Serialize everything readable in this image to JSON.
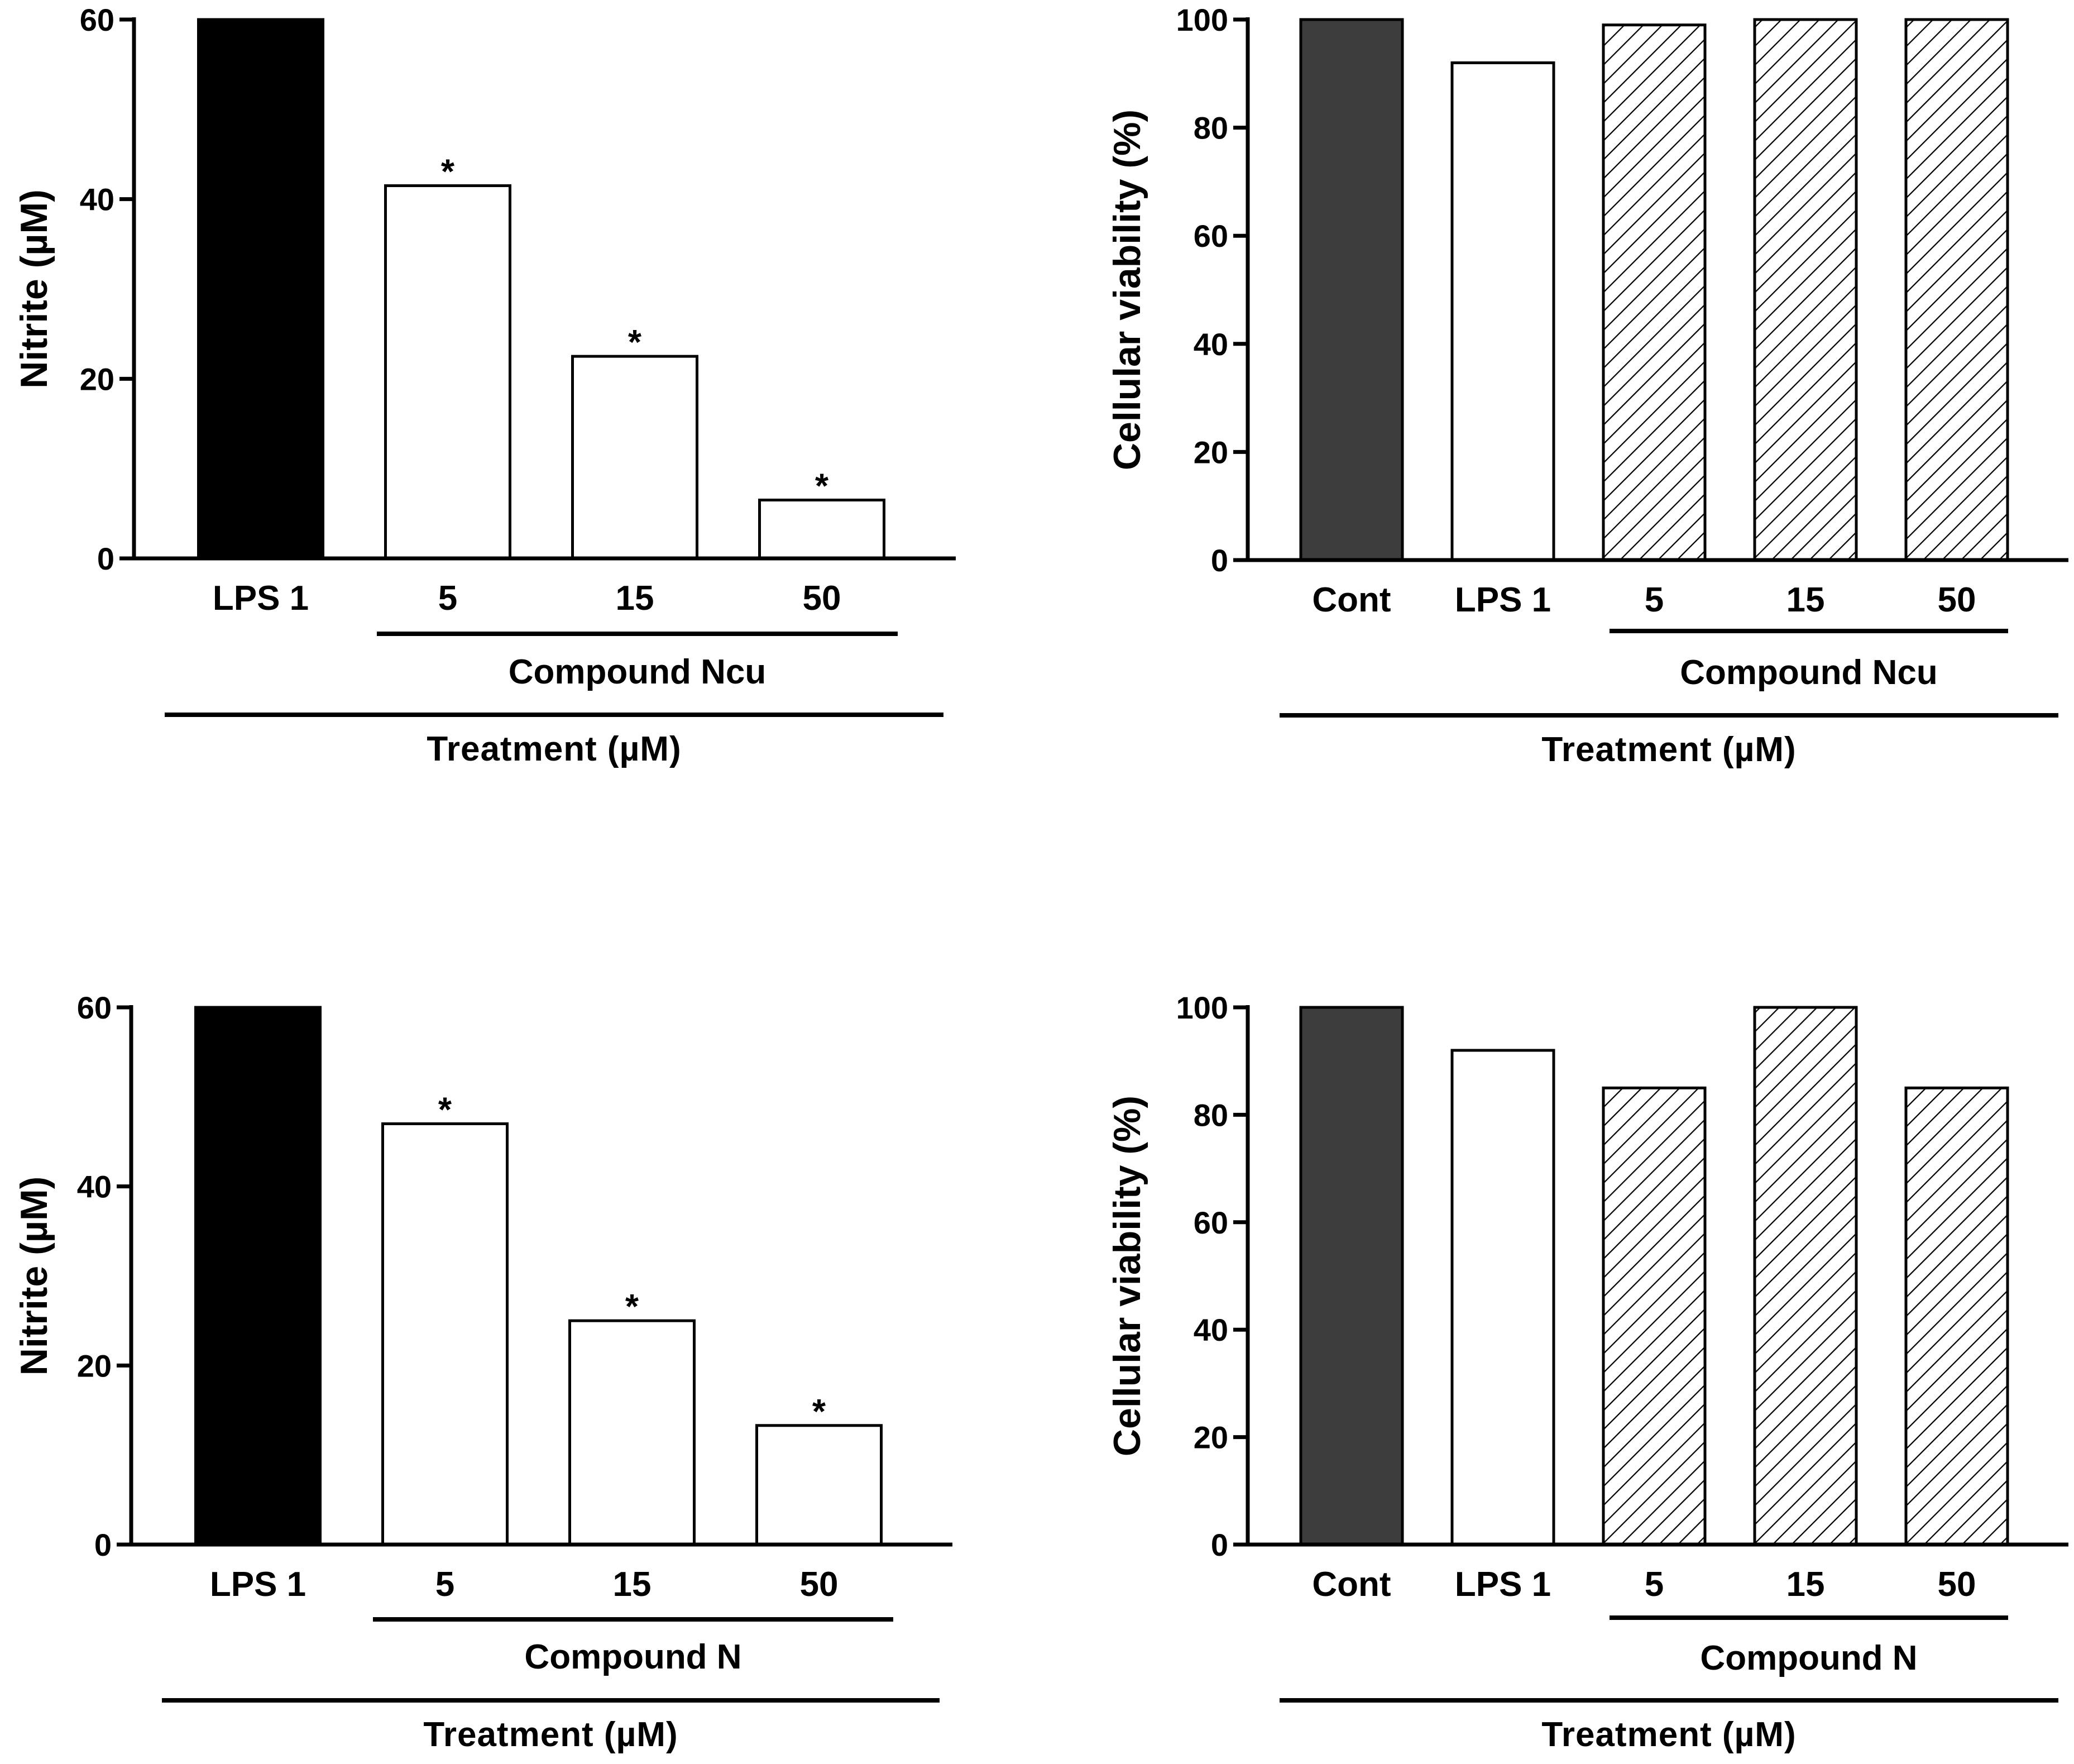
{
  "chart_data": [
    {
      "id": "panel-nitrite-ncu",
      "type": "bar",
      "ylabel": "Nitrite (µM)",
      "ylim": [
        0,
        60
      ],
      "yticks": [
        0,
        20,
        40,
        60
      ],
      "categories": [
        "LPS 1",
        "5",
        "15",
        "50"
      ],
      "values": [
        60,
        41.5,
        22.5,
        6.5
      ],
      "significance": [
        "",
        "*",
        "*",
        "*"
      ],
      "bar_styles": [
        "black",
        "white",
        "white",
        "white"
      ],
      "group_label": "Compound Ncu",
      "xlabel": "Treatment (µM)"
    },
    {
      "id": "panel-viability-ncu",
      "type": "bar",
      "ylabel": "Cellular viability (%)",
      "ylim": [
        0,
        100
      ],
      "yticks": [
        0,
        20,
        40,
        60,
        80,
        100
      ],
      "categories": [
        "Cont",
        "LPS 1",
        "5",
        "15",
        "50"
      ],
      "values": [
        100,
        92,
        99,
        100,
        100
      ],
      "significance": [
        "",
        "",
        "",
        "",
        ""
      ],
      "bar_styles": [
        "dark",
        "white",
        "hatched",
        "hatched",
        "hatched"
      ],
      "group_label": "Compound Ncu",
      "xlabel": "Treatment (µM)"
    },
    {
      "id": "panel-nitrite-n",
      "type": "bar",
      "ylabel": "Nitrite (µM)",
      "ylim": [
        0,
        60
      ],
      "yticks": [
        0,
        20,
        40,
        60
      ],
      "categories": [
        "LPS 1",
        "5",
        "15",
        "50"
      ],
      "values": [
        60,
        47,
        25,
        13.3
      ],
      "significance": [
        "",
        "*",
        "*",
        "*"
      ],
      "bar_styles": [
        "black",
        "white",
        "white",
        "white"
      ],
      "group_label": "Compound N",
      "xlabel": "Treatment (µM)"
    },
    {
      "id": "panel-viability-n",
      "type": "bar",
      "ylabel": "Cellular viability (%)",
      "ylim": [
        0,
        100
      ],
      "yticks": [
        0,
        20,
        40,
        60,
        80,
        100
      ],
      "categories": [
        "Cont",
        "LPS 1",
        "5",
        "15",
        "50"
      ],
      "values": [
        100,
        92,
        85,
        100,
        85
      ],
      "significance": [
        "",
        "",
        "",
        "",
        ""
      ],
      "bar_styles": [
        "dark",
        "white",
        "hatched",
        "hatched",
        "hatched"
      ],
      "group_label": "Compound N",
      "xlabel": "Treatment (µM)"
    }
  ],
  "colors": {
    "black": "#000000",
    "dark": "#3d3d3d",
    "white": "#ffffff",
    "hatch": "#000000"
  }
}
